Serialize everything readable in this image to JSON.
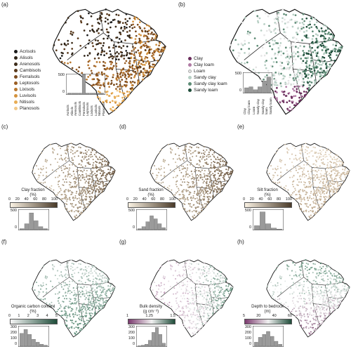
{
  "panels": {
    "a": {
      "label": "(a)"
    },
    "b": {
      "label": "(b)"
    },
    "c": {
      "label": "(c)"
    },
    "d": {
      "label": "(d)"
    },
    "e": {
      "label": "(e)"
    },
    "f": {
      "label": "(f)"
    },
    "g": {
      "label": "(g)"
    },
    "h": {
      "label": "(h)"
    }
  },
  "soil_legend": {
    "items": [
      {
        "label": "Acrisols",
        "color": "#1a1a1a"
      },
      {
        "label": "Alisols",
        "color": "#2e2418"
      },
      {
        "label": "Arenosols",
        "color": "#3d2c1a"
      },
      {
        "label": "Cambisols",
        "color": "#5a3a1c"
      },
      {
        "label": "Ferralsols",
        "color": "#7a4a1e"
      },
      {
        "label": "Leptosols",
        "color": "#9a5e24"
      },
      {
        "label": "Lixisols",
        "color": "#b8772e"
      },
      {
        "label": "Luvisols",
        "color": "#d4923c"
      },
      {
        "label": "Nitisols",
        "color": "#e8ad55"
      },
      {
        "label": "Planosols",
        "color": "#f2c98a"
      }
    ],
    "hist_ticks": [
      "500",
      "0"
    ]
  },
  "texture_legend": {
    "items": [
      {
        "label": "Clay",
        "color": "#6b2d5c"
      },
      {
        "label": "Clay loam",
        "color": "#b07aa4"
      },
      {
        "label": "Loam",
        "color": "#e6e6e6"
      },
      {
        "label": "Sandy clay",
        "color": "#b7cfc4"
      },
      {
        "label": "Sandy clay loam",
        "color": "#5e8c76"
      },
      {
        "label": "Sandy loam",
        "color": "#1f4d3a"
      }
    ],
    "hist_ticks": [
      "500",
      "0"
    ]
  },
  "colorbars": {
    "c": {
      "title": "Clay fraction",
      "unit": "(%)",
      "ticks": [
        "0",
        "20",
        "40",
        "60",
        "80",
        "100"
      ],
      "hist_ticks": [
        "500",
        "0"
      ],
      "colors": [
        "#fbf3e4",
        "#4a3b2a"
      ]
    },
    "d": {
      "title": "Sand fraction",
      "unit": "(%)",
      "ticks": [
        "0",
        "20",
        "40",
        "60",
        "80",
        "100"
      ],
      "hist_ticks": [
        "500",
        "0"
      ],
      "colors": [
        "#fbf3e4",
        "#4a3b2a"
      ]
    },
    "e": {
      "title": "Silt fraction",
      "unit": "(%)",
      "ticks": [
        "0",
        "20",
        "40",
        "60",
        "80",
        "100"
      ],
      "hist_ticks": [
        "500",
        "0"
      ],
      "colors": [
        "#fbf3e4",
        "#4a3b2a"
      ]
    },
    "f": {
      "title": "Organic carbon content",
      "unit": "(%)",
      "ticks": [
        "0",
        "1",
        "2",
        "3",
        "4",
        "5"
      ],
      "hist_ticks": [
        "300",
        "200",
        "100",
        "0"
      ],
      "colors": [
        "#f5f5f5",
        "#1f4d3a"
      ]
    },
    "g": {
      "title": "Bulk density",
      "unit": "(g cm⁻³)",
      "ticks": [
        "1",
        "1.25",
        "1.5"
      ],
      "hist_ticks": [
        "300",
        "200",
        "100",
        "0"
      ],
      "colors": [
        "#7b3a6e",
        "#f0f0f0",
        "#1f4d3a"
      ]
    },
    "h": {
      "title": "Depth to bedrock",
      "unit": "(m)",
      "ticks": [
        "5",
        "20",
        "40",
        "60"
      ],
      "hist_ticks": [
        "300",
        "200",
        "100",
        "0"
      ],
      "colors": [
        "#7b3a6e",
        "#f0f0f0",
        "#1f4d3a"
      ]
    }
  },
  "histograms": {
    "a": [
      0.05,
      0.05,
      0.05,
      0.05,
      1.0,
      0.05,
      0.05,
      0.05,
      0.05,
      0.05
    ],
    "b": [
      0.25,
      0.3,
      0.15,
      0.3,
      0.6,
      0.8
    ],
    "c": [
      0.05,
      0.3,
      0.85,
      0.45,
      0.15,
      0.05
    ],
    "d": [
      0.05,
      0.15,
      0.4,
      0.7,
      0.55,
      0.3,
      0.1
    ],
    "e": [
      0.2,
      0.9,
      0.3,
      0.08,
      0.03
    ],
    "f": [
      0.65,
      0.85,
      0.6,
      0.35,
      0.2,
      0.1,
      0.05
    ],
    "g": [
      0.02,
      0.05,
      0.1,
      0.3,
      0.7,
      0.95,
      0.6,
      0.15
    ],
    "h": [
      0.2,
      0.45,
      0.6,
      0.75,
      0.5,
      0.25,
      0.1
    ]
  }
}
